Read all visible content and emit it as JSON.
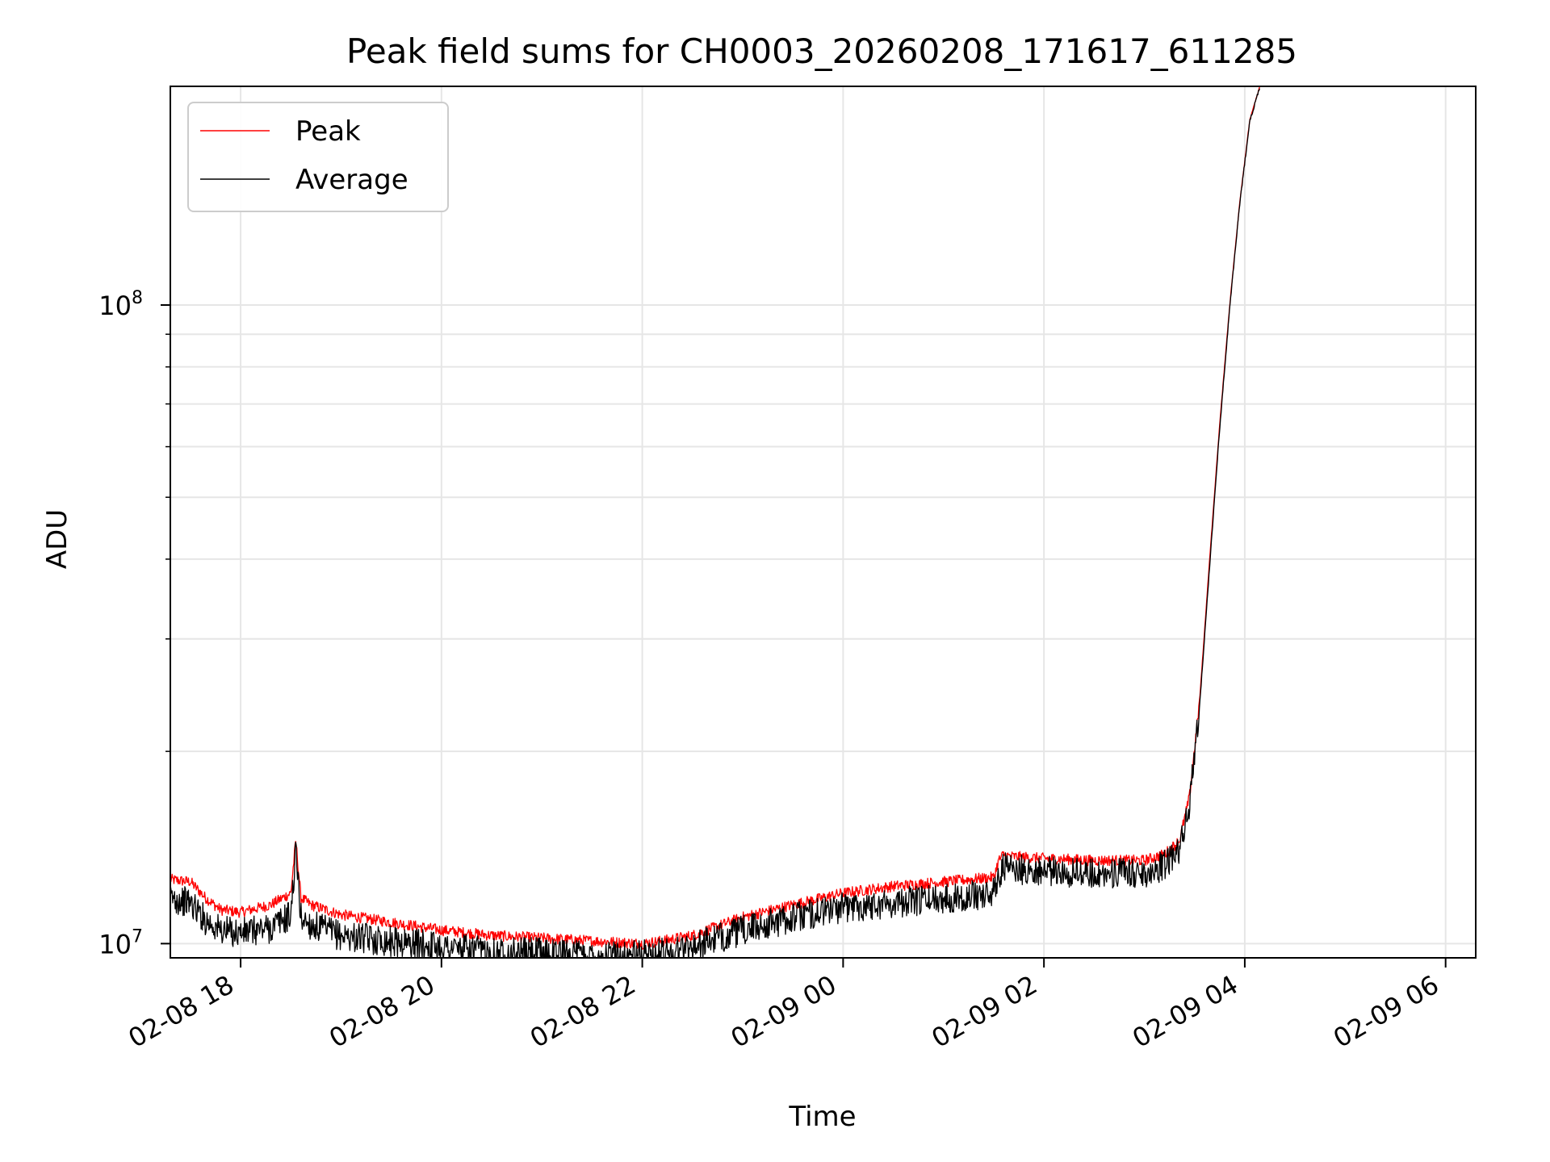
{
  "chart_data": {
    "type": "line",
    "title": "Peak field sums for CH0003_20260208_171617_611285",
    "xlabel": "Time",
    "ylabel": "ADU",
    "yscale": "log",
    "ylim": [
      9500000,
      220000000
    ],
    "xlim_hours": [
      -0.7,
      12.3
    ],
    "x_origin": "2026-02-08 18:00",
    "grid": true,
    "legend_position": "upper-left",
    "x_ticks": [
      {
        "hours": 0,
        "label": "02-08 18"
      },
      {
        "hours": 2,
        "label": "02-08 20"
      },
      {
        "hours": 4,
        "label": "02-08 22"
      },
      {
        "hours": 6,
        "label": "02-09 00"
      },
      {
        "hours": 8,
        "label": "02-09 02"
      },
      {
        "hours": 10,
        "label": "02-09 04"
      },
      {
        "hours": 12,
        "label": "02-09 06"
      }
    ],
    "y_major_ticks": [
      {
        "value": 10000000,
        "base": "10",
        "exp": "7"
      },
      {
        "value": 100000000,
        "base": "10",
        "exp": "8"
      }
    ],
    "y_minor_ticks": [
      20000000,
      30000000,
      40000000,
      50000000,
      60000000,
      70000000,
      80000000,
      90000000
    ],
    "series": [
      {
        "name": "Peak",
        "color": "#ff0000",
        "x_hours": [
          -0.7,
          -0.5,
          -0.35,
          -0.2,
          0.0,
          0.3,
          0.5,
          0.55,
          0.6,
          0.7,
          1.0,
          1.5,
          2.0,
          2.5,
          3.0,
          3.5,
          4.0,
          4.2,
          4.5,
          5.0,
          5.5,
          6.0,
          6.5,
          7.0,
          7.5,
          7.55,
          7.6,
          7.65,
          8.0,
          8.5,
          9.0,
          9.2,
          9.35,
          9.45,
          9.55,
          9.65,
          9.75,
          9.85,
          9.95,
          10.05,
          10.15
        ],
        "values": [
          12600000,
          12500000,
          11800000,
          11300000,
          11200000,
          11500000,
          12000000,
          14500000,
          11800000,
          11500000,
          11100000,
          10800000,
          10500000,
          10300000,
          10200000,
          10100000,
          10000000,
          10100000,
          10300000,
          11000000,
          11500000,
          12000000,
          12300000,
          12500000,
          12700000,
          13500000,
          13800000,
          13700000,
          13600000,
          13500000,
          13500000,
          13800000,
          14500000,
          17000000,
          24000000,
          40000000,
          65000000,
          100000000,
          145000000,
          195000000,
          220000000
        ]
      },
      {
        "name": "Average",
        "color": "#000000",
        "x_hours": [
          -0.7,
          -0.5,
          -0.35,
          -0.2,
          0.0,
          0.3,
          0.5,
          0.55,
          0.6,
          0.7,
          1.0,
          1.5,
          2.0,
          2.5,
          3.0,
          3.5,
          4.0,
          4.2,
          4.5,
          5.0,
          5.5,
          6.0,
          6.5,
          7.0,
          7.5,
          7.55,
          7.6,
          7.65,
          8.0,
          8.5,
          9.0,
          9.2,
          9.35,
          9.45,
          9.55,
          9.65,
          9.75,
          9.85,
          9.95,
          10.05,
          10.15
        ],
        "values": [
          11800000,
          11600000,
          10900000,
          10500000,
          10400000,
          10600000,
          11100000,
          14000000,
          11000000,
          10700000,
          10300000,
          10100000,
          9900000,
          9700000,
          9700000,
          9600000,
          9600000,
          9700000,
          9900000,
          10500000,
          11000000,
          11400000,
          11600000,
          11800000,
          12000000,
          12900000,
          13200000,
          13100000,
          13000000,
          12900000,
          12900000,
          13300000,
          14000000,
          16500000,
          23500000,
          39000000,
          64000000,
          99000000,
          144000000,
          194000000,
          220000000
        ]
      }
    ]
  }
}
